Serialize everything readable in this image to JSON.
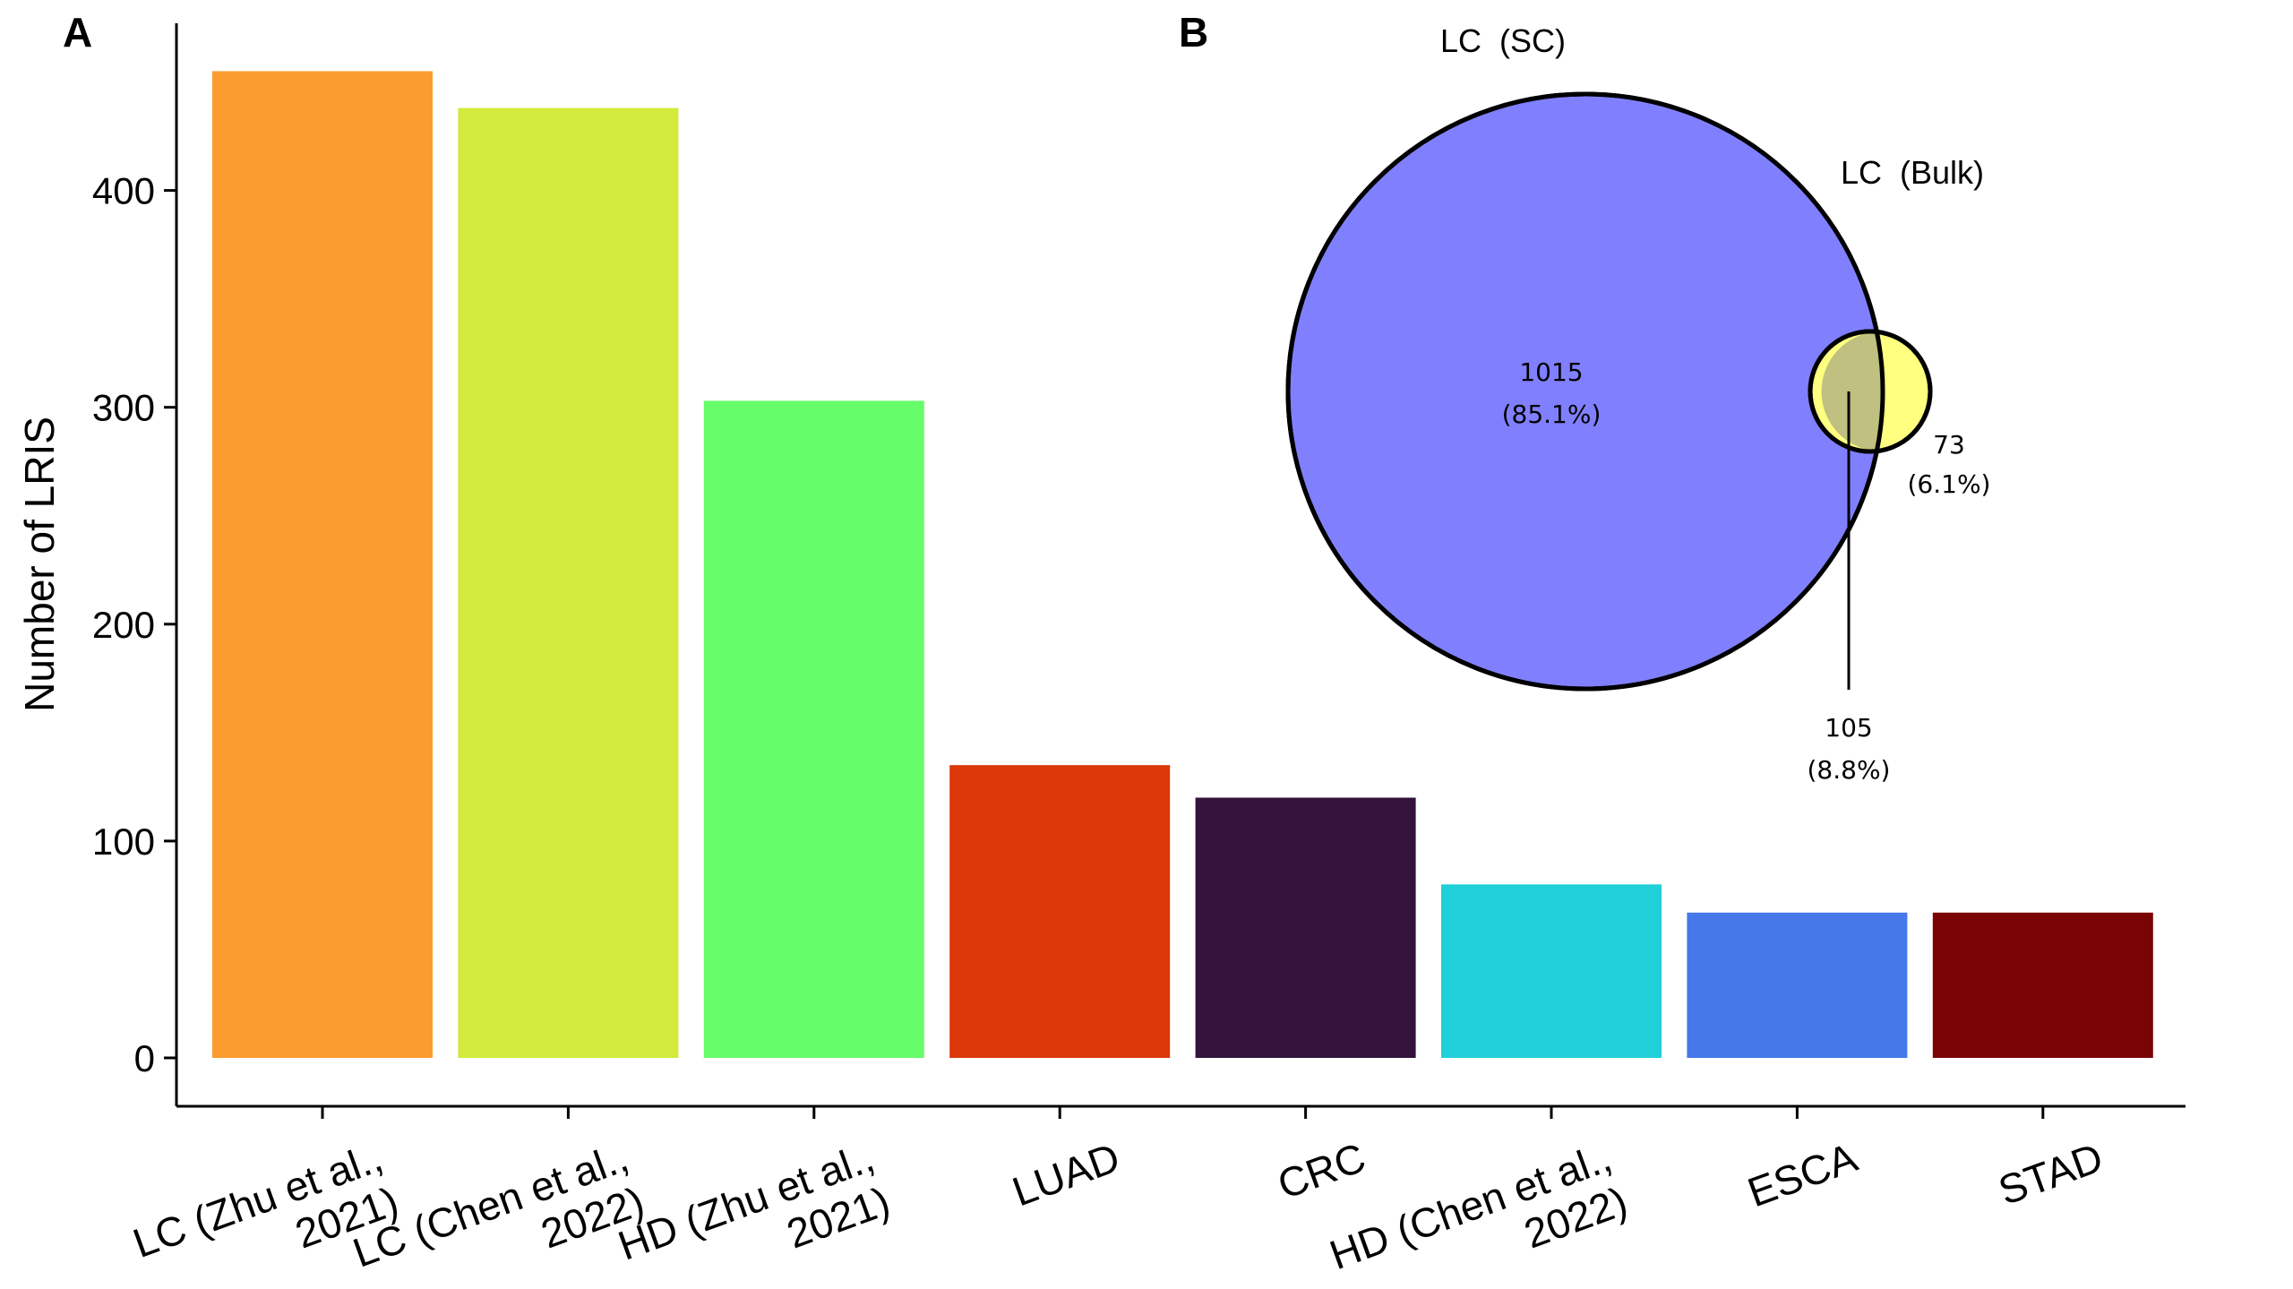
{
  "chart_data": [
    {
      "type": "bar",
      "panel_label": "A",
      "categories": [
        [
          "LC (Zhu et al.,",
          "2021)"
        ],
        [
          "LC (Chen et al.,",
          "2022)"
        ],
        [
          "HD (Zhu et al.,",
          "2021)"
        ],
        [
          "LUAD"
        ],
        [
          "CRC"
        ],
        [
          "HD (Chen et al.,",
          "2022)"
        ],
        [
          "ESCA"
        ],
        [
          "STAD"
        ]
      ],
      "values": [
        455,
        438,
        303,
        135,
        120,
        80,
        67,
        67
      ],
      "colors": [
        "#FB9C2E",
        "#D2EA3B",
        "#66FD6B",
        "#DB3708",
        "#33123B",
        "#1FD0D8",
        "#4678EA",
        "#7A0403"
      ],
      "ylabel": "Number of LRIS",
      "xlabel": "",
      "ylim": [
        -22,
        475
      ],
      "yticks": [
        0,
        100,
        200,
        300,
        400
      ],
      "grid": false,
      "legend": "none"
    },
    {
      "type": "venn",
      "panel_label": "B",
      "sets": [
        {
          "name": "LC  (SC)",
          "color": "#8080FF"
        },
        {
          "name": "LC  (Bulk)",
          "color": "#FFFF80"
        }
      ],
      "regions": [
        {
          "count": "1015",
          "percent": "(85.1%)",
          "region": "LC (SC) only"
        },
        {
          "count": "105",
          "percent": "(8.8%)",
          "region": "intersection"
        },
        {
          "count": "73",
          "percent": "(6.1%)",
          "region": "LC (Bulk) only"
        }
      ],
      "overlap_color": "#C0C080"
    }
  ]
}
